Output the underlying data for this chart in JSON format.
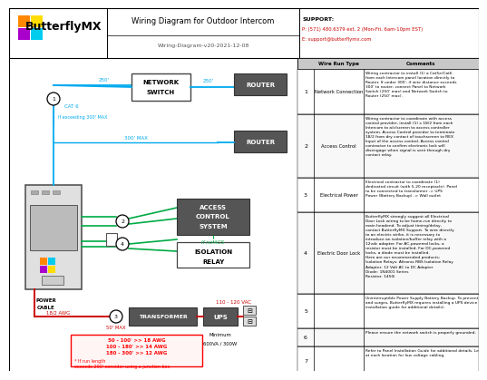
{
  "title": "Wiring Diagram for Outdoor Intercom",
  "subtitle": "Wiring-Diagram-v20-2021-12-08",
  "support_title": "SUPPORT:",
  "support_phone": "P: (571) 480.6379 ext. 2 (Mon-Fri, 6am-10pm EST)",
  "support_email": "E: support@butterflymx.com",
  "logo_text": "ButterflyMX",
  "bg_color": "#ffffff",
  "cyan": "#00aaee",
  "green": "#00aa44",
  "dark_red": "#cc0000",
  "wire_run_types": [
    "Network Connection",
    "Access Control",
    "Electrical Power",
    "Electric Door Lock",
    "",
    "",
    ""
  ],
  "comments": [
    "Wiring contractor to install (1) a Cat5e/Cat6\nfrom each Intercom panel location directly to\nRouter. If under 300', if wire distance exceeds\n300' to router, connect Panel to Network\nSwitch (250' max) and Network Switch to\nRouter (250' max).",
    "Wiring contractor to coordinate with access\ncontrol provider, install (1) x 18/2 from each\nIntercom to a/c/screen to access controller\nsystem. Access Control provider to terminate\n18/2 from dry contact of touchscreen to REX\nInput of the access control. Access control\ncontractor to confirm electronic lock will\ndisengage when signal is sent through dry\ncontact relay.",
    "Electrical contractor to coordinate (1)\ndedicated circuit (with 5-20 receptacle). Panel\nto be connected to transformer -> UPS\nPower (Battery Backup) -> Wall outlet",
    "ButterflyMX strongly suggest all Electrical\nDoor Lock wiring to be home-run directly to\nmain headend. To adjust timing/delay,\ncontact ButterflyMX Support. To wire directly\nto an electric strike, it is necessary to\nintroduce an isolation/buffer relay with a\n12vdc adapter. For AC-powered locks, a\nresistor must be installed. For DC-powered\nlocks, a diode must be installed.\nHere are our recommended products:\nIsolation Relays: Altronix RBS Isolation Relay\nAdapter: 12 Volt AC to DC Adapter\nDiode: 1N4001 Series\nResistor: 1450i",
    "Uninterruptible Power Supply Battery Backup. To prevent voltage drops\nand surges, ButterflyMX requires installing a UPS device (see panel\ninstallation guide for additional details).",
    "Please ensure the network switch is properly grounded.",
    "Refer to Panel Installation Guide for additional details. Leave 6' service loop\nat each location for low voltage cabling."
  ]
}
